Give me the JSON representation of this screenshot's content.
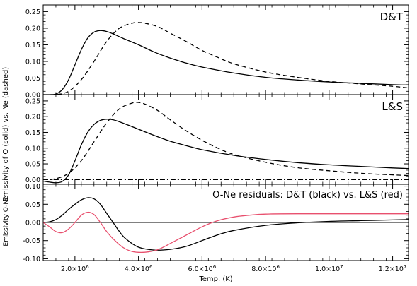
{
  "chart_data": [
    {
      "type": "line",
      "panel": "top",
      "annotation": "D&T",
      "annotation_color": "#000000",
      "ylim": [
        0,
        0.27
      ],
      "yticks": [
        0.0,
        0.05,
        0.1,
        0.15,
        0.2,
        0.25
      ],
      "ytick_labels": [
        "0.00",
        "0.05",
        "0.10",
        "0.15",
        "0.20",
        "0.25"
      ],
      "series": [
        {
          "style": "solid",
          "color": "#000000",
          "x": [
            1000000.0,
            1200000.0,
            1400000.0,
            1600000.0,
            1800000.0,
            2000000.0,
            2200000.0,
            2400000.0,
            2600000.0,
            2800000.0,
            3000000.0,
            3200000.0,
            3500000.0,
            4000000.0,
            4500000.0,
            5000000.0,
            5500000.0,
            6000000.0,
            7000000.0,
            8000000.0,
            9000000.0,
            10000000.0,
            11000000.0,
            12000000.0,
            12500000.0
          ],
          "y": [
            0.0,
            0.0,
            0.002,
            0.015,
            0.045,
            0.09,
            0.135,
            0.17,
            0.188,
            0.193,
            0.19,
            0.183,
            0.17,
            0.15,
            0.128,
            0.11,
            0.095,
            0.083,
            0.065,
            0.052,
            0.044,
            0.038,
            0.034,
            0.03,
            0.029
          ]
        },
        {
          "style": "dashed",
          "color": "#000000",
          "x": [
            1000000.0,
            1400000.0,
            1800000.0,
            2200000.0,
            2600000.0,
            3000000.0,
            3400000.0,
            3800000.0,
            4000000.0,
            4200000.0,
            4600000.0,
            5000000.0,
            5500000.0,
            6000000.0,
            6500000.0,
            7000000.0,
            8000000.0,
            9000000.0,
            10000000.0,
            11000000.0,
            12000000.0,
            12500000.0
          ],
          "y": [
            0.0,
            0.0,
            0.01,
            0.045,
            0.1,
            0.16,
            0.2,
            0.215,
            0.217,
            0.215,
            0.205,
            0.185,
            0.16,
            0.133,
            0.112,
            0.093,
            0.068,
            0.052,
            0.04,
            0.032,
            0.025,
            0.02
          ]
        }
      ]
    },
    {
      "type": "line",
      "panel": "middle",
      "annotation": "L&S",
      "annotation_color": "#e8506e",
      "ylabel": "Emissivity of O (solid) vs. Ne (dashed)",
      "ylim": [
        -0.015,
        0.27
      ],
      "yticks": [
        0.0,
        0.05,
        0.1,
        0.15,
        0.2,
        0.25
      ],
      "ytick_labels": [
        "0.00",
        "0.05",
        "0.10",
        "0.15",
        "0.20",
        "0.25"
      ],
      "series": [
        {
          "style": "solid",
          "color": "#000000",
          "x": [
            1000000.0,
            1200000.0,
            1400000.0,
            1600000.0,
            1800000.0,
            2000000.0,
            2200000.0,
            2400000.0,
            2600000.0,
            2800000.0,
            3000000.0,
            3200000.0,
            3500000.0,
            4000000.0,
            4500000.0,
            5000000.0,
            5500000.0,
            6000000.0,
            7000000.0,
            8000000.0,
            9000000.0,
            10000000.0,
            11000000.0,
            12000000.0,
            12500000.0
          ],
          "y": [
            -0.005,
            -0.008,
            -0.01,
            -0.006,
            0.015,
            0.06,
            0.11,
            0.15,
            0.175,
            0.188,
            0.192,
            0.19,
            0.18,
            0.16,
            0.14,
            0.122,
            0.108,
            0.095,
            0.077,
            0.064,
            0.054,
            0.047,
            0.042,
            0.037,
            0.035
          ]
        },
        {
          "style": "dashed",
          "color": "#000000",
          "x": [
            1000000.0,
            1400000.0,
            1800000.0,
            2200000.0,
            2600000.0,
            3000000.0,
            3400000.0,
            3800000.0,
            4000000.0,
            4200000.0,
            4600000.0,
            5000000.0,
            5500000.0,
            6000000.0,
            6500000.0,
            7000000.0,
            8000000.0,
            9000000.0,
            10000000.0,
            11000000.0,
            12000000.0,
            12500000.0
          ],
          "y": [
            0.0,
            0.003,
            0.02,
            0.06,
            0.12,
            0.18,
            0.225,
            0.243,
            0.245,
            0.24,
            0.22,
            0.19,
            0.155,
            0.125,
            0.1,
            0.08,
            0.055,
            0.038,
            0.028,
            0.02,
            0.015,
            0.013
          ]
        },
        {
          "style": "dashdot",
          "color": "#000000",
          "x": [
            1000000.0,
            12500000.0
          ],
          "y": [
            0.0,
            0.0
          ]
        }
      ]
    },
    {
      "type": "line",
      "panel": "bottom",
      "annotation": "O-Ne residuals: D&T (black) vs. L&S (red)",
      "annotation_color": "#000000",
      "ylabel": "Emissivity O-Ne",
      "xlabel": "Temp. (K)",
      "ylim": [
        -0.105,
        0.105
      ],
      "yticks": [
        -0.1,
        -0.05,
        0.0,
        0.05,
        0.1
      ],
      "ytick_labels": [
        "-0.10",
        "-0.05",
        "0.00",
        "0.05",
        "0.10"
      ],
      "xlim": [
        1000000.0,
        12500000.0
      ],
      "xticks": [
        2000000.0,
        4000000.0,
        6000000.0,
        8000000.0,
        10000000.0,
        12000000.0
      ],
      "xtick_mantissa": [
        "2.0",
        "4.0",
        "6.0",
        "8.0",
        "1.0",
        "1.2"
      ],
      "xtick_base": "×10",
      "xtick_exponent": [
        "6",
        "6",
        "6",
        "6",
        "7",
        "7"
      ],
      "reference_line_y": 0.0,
      "series": [
        {
          "style": "solid",
          "color": "#000000",
          "x": [
            1000000.0,
            1200000.0,
            1400000.0,
            1600000.0,
            1800000.0,
            2000000.0,
            2200000.0,
            2400000.0,
            2600000.0,
            2800000.0,
            3000000.0,
            3200000.0,
            3400000.0,
            3600000.0,
            4000000.0,
            4500000.0,
            5000000.0,
            5500000.0,
            6000000.0,
            6500000.0,
            7000000.0,
            8000000.0,
            9000000.0,
            10000000.0,
            11000000.0,
            12000000.0,
            12500000.0
          ],
          "y": [
            0.0,
            0.002,
            0.008,
            0.02,
            0.036,
            0.05,
            0.062,
            0.068,
            0.065,
            0.05,
            0.025,
            0.0,
            -0.025,
            -0.045,
            -0.068,
            -0.076,
            -0.074,
            -0.066,
            -0.05,
            -0.034,
            -0.022,
            -0.008,
            -0.001,
            0.003,
            0.005,
            0.007,
            0.008
          ]
        },
        {
          "style": "solid",
          "color": "#e8506e",
          "x": [
            1000000.0,
            1200000.0,
            1400000.0,
            1600000.0,
            1800000.0,
            2000000.0,
            2200000.0,
            2400000.0,
            2600000.0,
            2800000.0,
            3000000.0,
            3200000.0,
            3500000.0,
            3800000.0,
            4200000.0,
            4600000.0,
            5000000.0,
            5500000.0,
            6000000.0,
            6500000.0,
            7000000.0,
            7500000.0,
            8000000.0,
            9000000.0,
            10000000.0,
            11000000.0,
            12000000.0,
            12500000.0
          ],
          "y": [
            0.0,
            -0.012,
            -0.025,
            -0.028,
            -0.018,
            0.0,
            0.02,
            0.028,
            0.022,
            0.0,
            -0.025,
            -0.045,
            -0.068,
            -0.08,
            -0.082,
            -0.075,
            -0.058,
            -0.035,
            -0.012,
            0.005,
            0.015,
            0.02,
            0.023,
            0.024,
            0.024,
            0.024,
            0.024,
            0.024
          ]
        }
      ]
    }
  ]
}
